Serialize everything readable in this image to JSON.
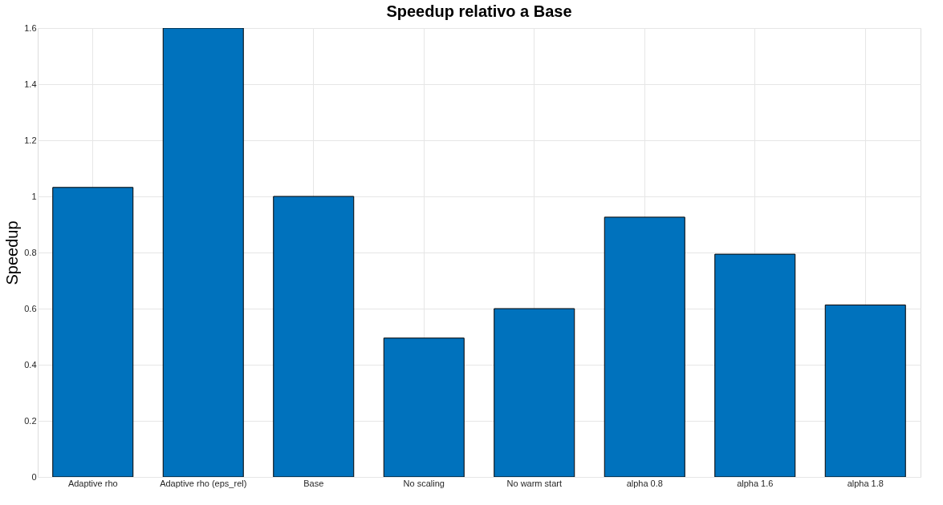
{
  "chart_data": {
    "type": "bar",
    "title": "Speedup relativo a Base",
    "ylabel": "Speedup",
    "categories": [
      "Adaptive rho",
      "Adaptive rho (eps_rel)",
      "Base",
      "No scaling",
      "No warm start",
      "alpha 0.8",
      "alpha 1.6",
      "alpha 1.8"
    ],
    "values": [
      1.032,
      1.6,
      1.0,
      0.495,
      0.6,
      0.926,
      0.794,
      0.613
    ],
    "color": "#0072bd",
    "ylim": [
      0,
      1.6
    ],
    "yticks": [
      0,
      0.2,
      0.4,
      0.6,
      0.8,
      1,
      1.2,
      1.4,
      1.6
    ],
    "grid": true
  }
}
